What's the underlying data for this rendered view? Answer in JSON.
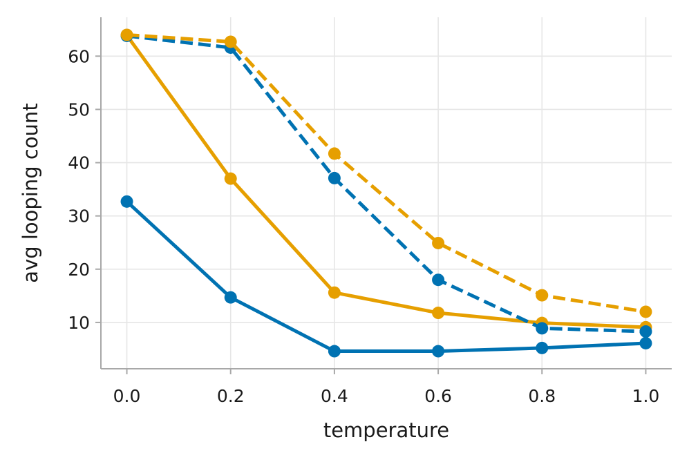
{
  "chart_data": {
    "type": "line",
    "title": "",
    "xlabel": "temperature",
    "ylabel": "avg looping count",
    "x": [
      0.0,
      0.2,
      0.4,
      0.6,
      0.8,
      1.0
    ],
    "xticks": [
      "0.0",
      "0.2",
      "0.4",
      "0.6",
      "0.8",
      "1.0"
    ],
    "yticks": [
      10,
      20,
      30,
      40,
      50,
      60
    ],
    "ytick_labels": [
      "10",
      "20",
      "30",
      "40",
      "50",
      "60"
    ],
    "xlim": [
      -0.05,
      1.05
    ],
    "ylim": [
      1.3,
      67.3
    ],
    "grid": true,
    "legend": "none",
    "series": [
      {
        "name": "blue-solid",
        "color": "#0072b2",
        "style": "solid",
        "values": [
          32.7,
          14.7,
          4.6,
          4.6,
          5.2,
          6.1
        ]
      },
      {
        "name": "orange-solid",
        "color": "#e69f00",
        "style": "solid",
        "values": [
          63.9,
          37.0,
          15.6,
          11.8,
          9.9,
          9.1
        ]
      },
      {
        "name": "blue-dashed",
        "color": "#0072b2",
        "style": "dashed",
        "values": [
          63.8,
          61.6,
          37.1,
          18.0,
          8.9,
          8.3
        ]
      },
      {
        "name": "orange-dashed",
        "color": "#e69f00",
        "style": "dashed",
        "values": [
          64.0,
          62.7,
          41.7,
          24.9,
          15.1,
          12.0
        ]
      }
    ]
  }
}
